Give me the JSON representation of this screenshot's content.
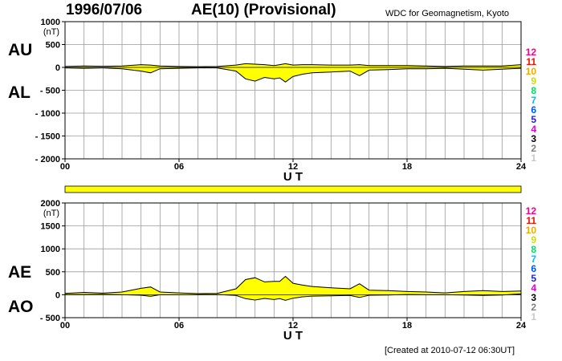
{
  "header": {
    "date": "1996/07/06",
    "title": "AE(10) (Provisional)",
    "source": "WDC for Geomagnetism, Kyoto"
  },
  "footer": {
    "created": "[Created at 2010-07-12 06:30UT]"
  },
  "colors": {
    "fill": "#ffff00",
    "grid": "#9a9a9a",
    "month_scale": [
      "#c8c8c8",
      "#808080",
      "#000000",
      "#dd00dd",
      "#2222cc",
      "#0055ff",
      "#00bbff",
      "#00dd66",
      "#ccdd00",
      "#eeaa00",
      "#ee1100",
      "#ff0088"
    ]
  },
  "month_scale": [
    "1",
    "2",
    "3",
    "4",
    "5",
    "6",
    "7",
    "8",
    "9",
    "10",
    "11",
    "12"
  ],
  "chart_data": [
    {
      "type": "area",
      "name": "AU/AL",
      "labels": {
        "upper": "AU",
        "lower": "AL"
      },
      "yunit": "(nT)",
      "ylim": [
        -2000,
        1000
      ],
      "yticks": [
        1000,
        500,
        0,
        -500,
        -1000,
        -1500,
        -2000
      ],
      "xlim": [
        0,
        24
      ],
      "xticks": [
        "00",
        "06",
        "12",
        "18",
        "24"
      ],
      "xlabel": "U T",
      "x": [
        0,
        1,
        2,
        3,
        4,
        4.5,
        5,
        6,
        7,
        8,
        9,
        9.5,
        10,
        10.5,
        11,
        11.3,
        11.6,
        12,
        12.5,
        13,
        14,
        15,
        15.5,
        16,
        17,
        18,
        19,
        20,
        21,
        22,
        23,
        24
      ],
      "series": [
        {
          "name": "AU",
          "values": [
            20,
            30,
            25,
            30,
            60,
            50,
            30,
            20,
            15,
            20,
            50,
            80,
            70,
            60,
            40,
            60,
            80,
            50,
            60,
            60,
            50,
            50,
            60,
            40,
            40,
            40,
            30,
            20,
            30,
            30,
            30,
            60
          ]
        },
        {
          "name": "AL",
          "values": [
            -10,
            -20,
            -10,
            -30,
            -80,
            -120,
            -30,
            -20,
            -10,
            -10,
            -80,
            -250,
            -300,
            -220,
            -250,
            -230,
            -320,
            -200,
            -150,
            -120,
            -100,
            -80,
            -180,
            -60,
            -50,
            -30,
            -30,
            -20,
            -40,
            -60,
            -40,
            -20
          ]
        }
      ]
    },
    {
      "type": "area",
      "name": "AE/AO",
      "labels": {
        "upper": "AE",
        "lower": "AO"
      },
      "yunit": "(nT)",
      "ylim": [
        -500,
        2000
      ],
      "yticks": [
        2000,
        1500,
        1000,
        500,
        0,
        -500
      ],
      "xlim": [
        0,
        24
      ],
      "xticks": [
        "00",
        "06",
        "12",
        "18",
        "24"
      ],
      "xlabel": "U T",
      "x": [
        0,
        1,
        2,
        3,
        4,
        4.5,
        5,
        6,
        7,
        8,
        9,
        9.5,
        10,
        10.5,
        11,
        11.3,
        11.6,
        12,
        12.5,
        13,
        14,
        15,
        15.5,
        16,
        17,
        18,
        19,
        20,
        21,
        22,
        23,
        24
      ],
      "series": [
        {
          "name": "AE",
          "values": [
            30,
            50,
            35,
            60,
            140,
            170,
            60,
            40,
            25,
            30,
            130,
            330,
            370,
            280,
            290,
            290,
            400,
            250,
            210,
            180,
            150,
            130,
            240,
            100,
            90,
            70,
            60,
            40,
            70,
            90,
            70,
            80
          ]
        },
        {
          "name": "AO",
          "values": [
            5,
            5,
            8,
            0,
            -10,
            -35,
            0,
            0,
            3,
            5,
            -15,
            -85,
            -115,
            -80,
            -105,
            -85,
            -120,
            -75,
            -45,
            -30,
            -25,
            -15,
            -60,
            -10,
            -5,
            5,
            0,
            0,
            -5,
            -15,
            -5,
            20
          ]
        }
      ]
    }
  ]
}
